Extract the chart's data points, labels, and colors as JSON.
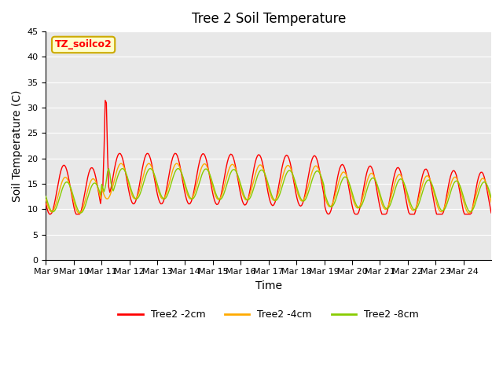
{
  "title": "Tree 2 Soil Temperature",
  "xlabel": "Time",
  "ylabel": "Soil Temperature (C)",
  "ylim": [
    0,
    45
  ],
  "yticks": [
    0,
    5,
    10,
    15,
    20,
    25,
    30,
    35,
    40,
    45
  ],
  "annotation_text": "TZ_soilco2",
  "annotation_bg": "#ffffcc",
  "annotation_border": "#ccaa00",
  "colors": {
    "2cm": "#ff0000",
    "4cm": "#ffaa00",
    "8cm": "#88cc00"
  },
  "legend_labels": [
    "Tree2 -2cm",
    "Tree2 -4cm",
    "Tree2 -8cm"
  ],
  "bg_color": "#e8e8e8",
  "x_dates": [
    "Mar 9",
    "Mar 10",
    "Mar 11",
    "Mar 12",
    "Mar 13",
    "Mar 14",
    "Mar 15",
    "Mar 16",
    "Mar 17",
    "Mar 18",
    "Mar 19",
    "Mar 20",
    "Mar 21",
    "Mar 22",
    "Mar 23",
    "Mar 24"
  ]
}
